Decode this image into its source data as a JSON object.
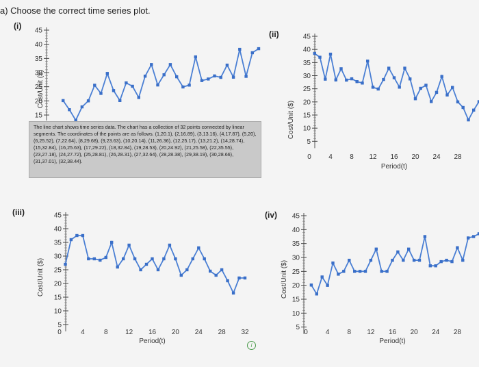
{
  "question": "a) Choose the correct time series plot.",
  "tooltip": "The line chart shows time series data. The chart has a collection of 32 points connected by linear segments. The coordinates of the points are as follows. (1,20.1), (2,16.89), (3,13.16), (4,17.87), (5,20), (6,25.52), (7,22.64), (8,29.68), (9,23.63), (10,20.14), (11,26.36), (12,25.17), (13,21.2), (14,28.74), (15,32.84), (16,25.63), (17,29.22), (18,32.84), (19,28.53), (20,24.92), (21,25.58), (22,35.55), (23,27.18), (24,27.72), (25,28.81), (26,28.31), (27,32.64), (28,28.38), (29,38.19), (30,28.66), (31,37.01), (32,38.44).",
  "info_icon": "info-icon",
  "chart_data": [
    {
      "type": "line",
      "label": "(i)",
      "ylabel": "Cost/Unit ($)",
      "xlabel": "",
      "yticks": [
        15,
        20,
        25,
        30,
        35,
        40,
        45
      ],
      "xticks": [],
      "x": [
        1,
        2,
        3,
        4,
        5,
        6,
        7,
        8,
        9,
        10,
        11,
        12,
        13,
        14,
        15,
        16,
        17,
        18,
        19,
        20,
        21,
        22,
        23,
        24,
        25,
        26,
        27,
        28,
        29,
        30,
        31,
        32
      ],
      "values": [
        20.1,
        16.89,
        13.16,
        17.87,
        20,
        25.52,
        22.64,
        29.68,
        23.63,
        20.14,
        26.36,
        25.17,
        21.2,
        28.74,
        32.84,
        25.63,
        29.22,
        32.84,
        28.53,
        24.92,
        25.58,
        35.55,
        27.18,
        27.72,
        28.81,
        28.31,
        32.64,
        28.38,
        38.19,
        28.66,
        37.01,
        38.44
      ]
    },
    {
      "type": "line",
      "label": "(ii)",
      "ylabel": "Cost/Unit ($)",
      "xlabel": "Period(t)",
      "yticks": [
        5,
        10,
        15,
        20,
        25,
        30,
        35,
        40,
        45
      ],
      "xticks": [
        0,
        4,
        8,
        12,
        16,
        20,
        24,
        28
      ],
      "x": [
        1,
        2,
        3,
        4,
        5,
        6,
        7,
        8,
        9,
        10,
        11,
        12,
        13,
        14,
        15,
        16,
        17,
        18,
        19,
        20,
        21,
        22,
        23,
        24,
        25,
        26,
        27,
        28,
        29,
        30,
        31,
        32
      ],
      "values": [
        38.44,
        37.01,
        28.66,
        38.19,
        28.38,
        32.64,
        28.31,
        28.81,
        27.72,
        27.18,
        35.55,
        25.58,
        24.92,
        28.53,
        32.84,
        29.22,
        25.63,
        32.84,
        28.74,
        21.2,
        25.17,
        26.36,
        20.14,
        23.63,
        29.68,
        22.64,
        25.52,
        20,
        17.87,
        13.16,
        16.89,
        20.1
      ]
    },
    {
      "type": "line",
      "label": "(iii)",
      "ylabel": "Cost/Unit ($)",
      "xlabel": "Period(t)",
      "yticks": [
        5,
        10,
        15,
        20,
        25,
        30,
        35,
        40,
        45
      ],
      "xticks": [
        0,
        4,
        8,
        12,
        16,
        20,
        24,
        28,
        32
      ],
      "x": [
        1,
        2,
        3,
        4,
        5,
        6,
        7,
        8,
        9,
        10,
        11,
        12,
        13,
        14,
        15,
        16,
        17,
        18,
        19,
        20,
        21,
        22,
        23,
        24,
        25,
        26,
        27,
        28,
        29,
        30,
        31,
        32
      ],
      "values": [
        27.0,
        36.0,
        37.5,
        37.5,
        29.0,
        29.0,
        28.5,
        29.5,
        35.0,
        26.0,
        29.0,
        34.0,
        29.0,
        25.0,
        27.0,
        29.0,
        25.0,
        29.0,
        34.0,
        29.0,
        23.0,
        25.0,
        29.0,
        33.0,
        29.0,
        24.5,
        23.0,
        25.0,
        21.0,
        16.5,
        22.0,
        22.0
      ]
    },
    {
      "type": "line",
      "label": "(iv)",
      "ylabel": "Cost/Unit ($)",
      "xlabel": "Period(t)",
      "yticks": [
        5,
        10,
        15,
        20,
        25,
        30,
        35,
        40,
        45
      ],
      "xticks": [
        0,
        4,
        8,
        12,
        16,
        20,
        24,
        28
      ],
      "x": [
        1,
        2,
        3,
        4,
        5,
        6,
        7,
        8,
        9,
        10,
        11,
        12,
        13,
        14,
        15,
        16,
        17,
        18,
        19,
        20,
        21,
        22,
        23,
        24,
        25,
        26,
        27,
        28,
        29,
        30,
        31,
        32
      ],
      "values": [
        20.1,
        16.89,
        23.0,
        20.0,
        28.0,
        24.0,
        25.0,
        29.0,
        25.0,
        25.0,
        25.0,
        29.0,
        33.0,
        25.0,
        25.0,
        29.0,
        32.0,
        29.0,
        33.0,
        29.0,
        29.0,
        37.5,
        27.0,
        27.0,
        28.5,
        29.0,
        28.5,
        33.5,
        29.0,
        37.0,
        37.5,
        38.5
      ]
    }
  ]
}
